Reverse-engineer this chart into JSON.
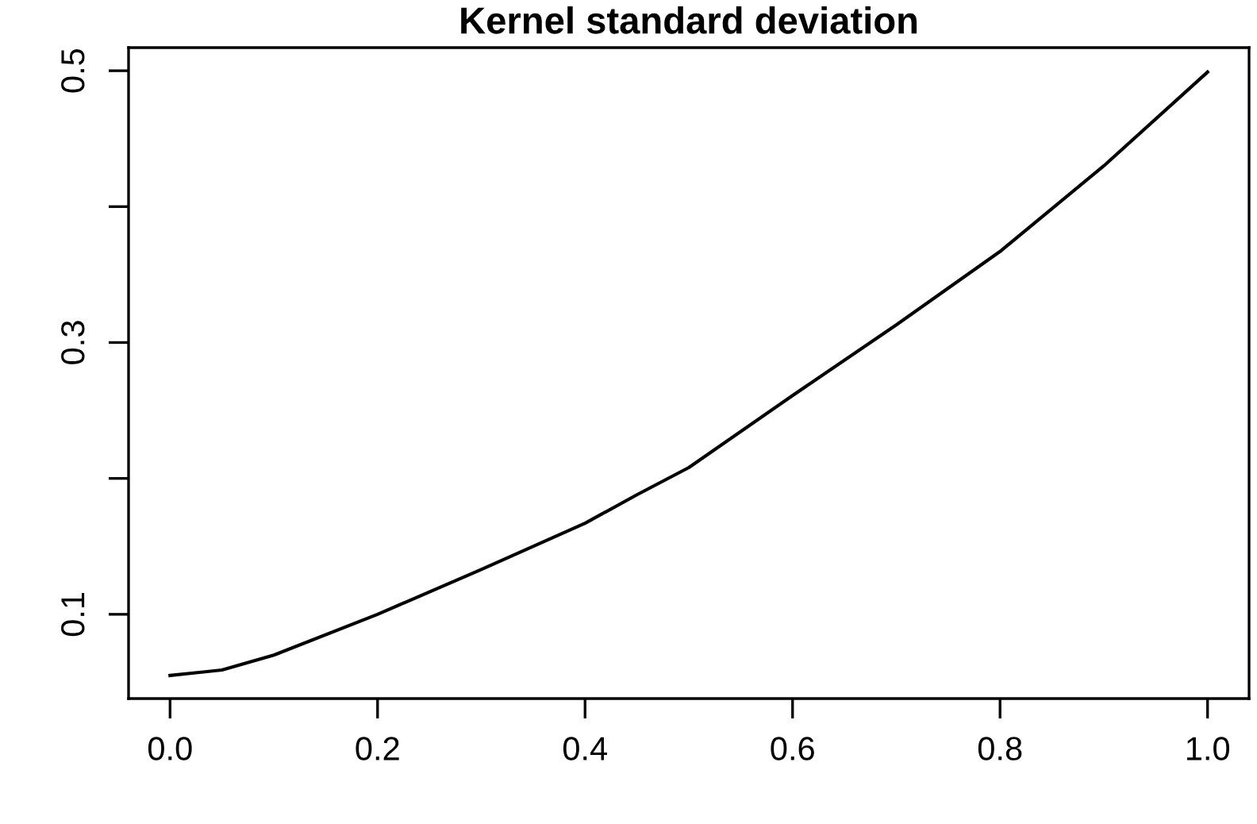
{
  "chart_data": {
    "type": "line",
    "title": "Kernel standard deviation",
    "x": [
      0,
      0.05,
      0.1,
      0.2,
      0.3,
      0.4,
      0.45,
      0.5,
      0.6,
      0.7,
      0.8,
      0.9,
      1.0
    ],
    "series": [
      {
        "color": "#000000",
        "values": [
          0.055,
          0.059,
          0.07,
          0.1,
          0.133,
          0.167,
          0.188,
          0.208,
          0.261,
          0.313,
          0.367,
          0.43,
          0.499
        ]
      }
    ],
    "xlim": [
      -0.04,
      1.04
    ],
    "ylim": [
      0.038,
      0.517
    ],
    "xticks": [
      {
        "value": 0,
        "label": "0.0"
      },
      0.2,
      0.4,
      0.6,
      0.8,
      {
        "value": 1,
        "label": "1.0"
      }
    ],
    "yticks": [
      0.1,
      {
        "value": 0.2,
        "label": null
      },
      0.3,
      {
        "value": 0.4,
        "label": null
      },
      0.5
    ],
    "grid": false,
    "legend": false,
    "marker": "none",
    "line_style": "solid"
  }
}
